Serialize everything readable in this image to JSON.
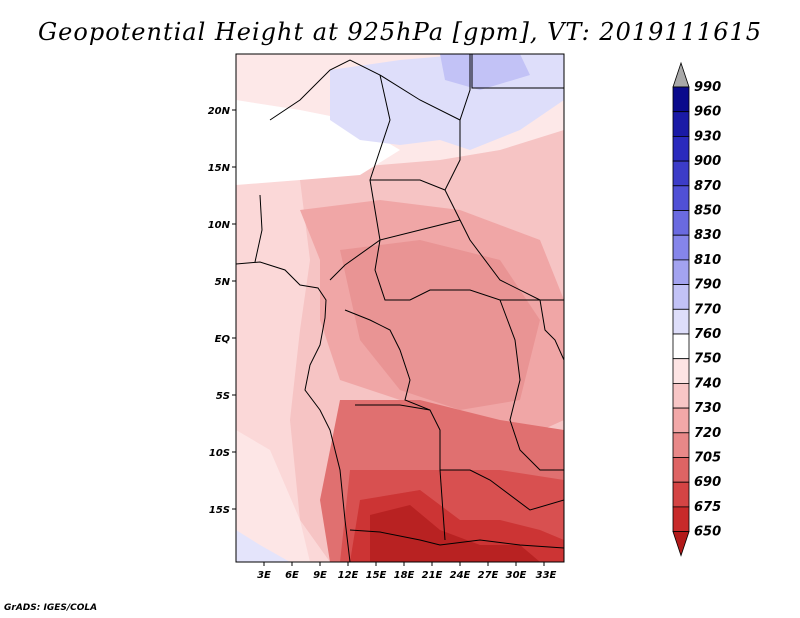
{
  "title": "Geopotential Height at 925hPa [gpm], VT: 2019111615",
  "credit": "GrADS: IGES/COLA",
  "map": {
    "lat_labels": [
      "20N",
      "15N",
      "10N",
      "5N",
      "EQ",
      "5S",
      "10S",
      "15S"
    ],
    "lon_labels": [
      "3E",
      "6E",
      "9E",
      "12E",
      "15E",
      "18E",
      "21E",
      "24E",
      "27E",
      "30E",
      "33E"
    ]
  },
  "colorbar": {
    "levels": [
      "990",
      "960",
      "930",
      "900",
      "870",
      "850",
      "830",
      "810",
      "790",
      "770",
      "760",
      "750",
      "740",
      "730",
      "720",
      "705",
      "690",
      "675",
      "650"
    ],
    "colors": [
      "#0a0a8c",
      "#1a1aa6",
      "#2a2abd",
      "#3c3cc8",
      "#5050d6",
      "#6a6ae0",
      "#8585ea",
      "#a3a3f0",
      "#c2c2f6",
      "#dedefa",
      "#ffffff",
      "#fde4e4",
      "#f8c6c6",
      "#f2a8a8",
      "#e88888",
      "#de6464",
      "#d44444",
      "#c82a2a",
      "#b21a1a"
    ],
    "top_arrow_color": "#a8a8a8"
  }
}
